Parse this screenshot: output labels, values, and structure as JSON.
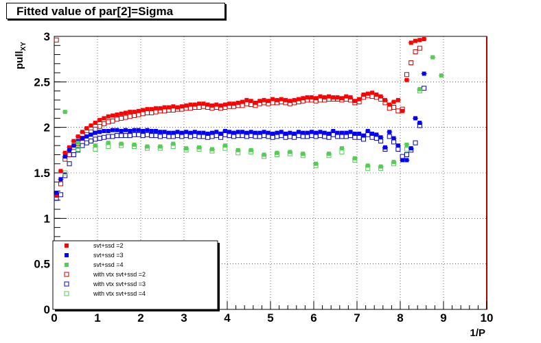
{
  "title": "Fitted value of par[2]=Sigma",
  "chart_data": {
    "type": "scatter",
    "title": "Fitted value of par[2]=Sigma",
    "xlabel": "1/P",
    "ylabel_main": "pull",
    "ylabel_sub": "XY",
    "xlim": [
      0,
      10
    ],
    "ylim": [
      0,
      3
    ],
    "x_ticks": [
      "0",
      "1",
      "2",
      "3",
      "4",
      "5",
      "6",
      "7",
      "8",
      "9",
      "10"
    ],
    "y_ticks": [
      "0",
      "0.5",
      "1",
      "1.5",
      "2",
      "2.5",
      "3"
    ],
    "grid": true,
    "legend_position": "bottom-left",
    "series": [
      {
        "name": "svt+ssd =2",
        "color": "#ff0000",
        "marker": "filled-square",
        "x": [
          0.05,
          0.15,
          0.25,
          0.35,
          0.45,
          0.55,
          0.65,
          0.75,
          0.85,
          0.95,
          1.05,
          1.15,
          1.25,
          1.35,
          1.45,
          1.55,
          1.65,
          1.75,
          1.85,
          1.95,
          2.05,
          2.15,
          2.25,
          2.35,
          2.45,
          2.55,
          2.65,
          2.75,
          2.85,
          2.95,
          3.05,
          3.15,
          3.25,
          3.35,
          3.45,
          3.55,
          3.65,
          3.75,
          3.85,
          3.95,
          4.05,
          4.15,
          4.25,
          4.35,
          4.45,
          4.55,
          4.65,
          4.75,
          4.85,
          4.95,
          5.05,
          5.15,
          5.25,
          5.35,
          5.45,
          5.55,
          5.65,
          5.75,
          5.85,
          5.95,
          6.05,
          6.15,
          6.25,
          6.35,
          6.45,
          6.55,
          6.65,
          6.75,
          6.85,
          6.95,
          7.05,
          7.15,
          7.25,
          7.35,
          7.45,
          7.55,
          7.65,
          7.75,
          7.85,
          7.95,
          8.05,
          8.15,
          8.25,
          8.35,
          8.45,
          8.55
        ],
        "y": [
          1.25,
          1.52,
          1.72,
          1.78,
          1.85,
          1.9,
          1.95,
          1.99,
          2.02,
          2.05,
          2.08,
          2.1,
          2.12,
          2.13,
          2.14,
          2.15,
          2.16,
          2.17,
          2.17,
          2.18,
          2.19,
          2.2,
          2.2,
          2.21,
          2.21,
          2.22,
          2.22,
          2.23,
          2.22,
          2.23,
          2.24,
          2.25,
          2.25,
          2.26,
          2.26,
          2.25,
          2.24,
          2.25,
          2.24,
          2.25,
          2.26,
          2.26,
          2.27,
          2.28,
          2.3,
          2.29,
          2.27,
          2.29,
          2.3,
          2.29,
          2.31,
          2.3,
          2.31,
          2.3,
          2.29,
          2.3,
          2.31,
          2.32,
          2.33,
          2.33,
          2.32,
          2.34,
          2.33,
          2.34,
          2.33,
          2.33,
          2.32,
          2.34,
          2.33,
          2.29,
          2.31,
          2.36,
          2.37,
          2.38,
          2.36,
          2.34,
          2.3,
          2.25,
          2.28,
          2.3,
          2.18,
          2.52,
          2.93,
          2.95,
          2.96,
          2.97
        ]
      },
      {
        "name": "svt+ssd =3",
        "color": "#0000ff",
        "marker": "filled-square",
        "x": [
          0.05,
          0.15,
          0.25,
          0.35,
          0.45,
          0.55,
          0.65,
          0.75,
          0.85,
          0.95,
          1.05,
          1.15,
          1.25,
          1.35,
          1.45,
          1.55,
          1.65,
          1.75,
          1.85,
          1.95,
          2.05,
          2.15,
          2.25,
          2.35,
          2.45,
          2.55,
          2.65,
          2.75,
          2.85,
          2.95,
          3.05,
          3.15,
          3.25,
          3.35,
          3.45,
          3.55,
          3.65,
          3.75,
          3.85,
          3.95,
          4.05,
          4.15,
          4.25,
          4.35,
          4.45,
          4.55,
          4.65,
          4.75,
          4.85,
          4.95,
          5.05,
          5.15,
          5.25,
          5.35,
          5.45,
          5.55,
          5.65,
          5.75,
          5.85,
          5.95,
          6.05,
          6.15,
          6.25,
          6.35,
          6.45,
          6.55,
          6.65,
          6.75,
          6.85,
          6.95,
          7.05,
          7.15,
          7.25,
          7.35,
          7.45,
          7.55,
          7.65,
          7.75,
          7.85,
          7.95,
          8.05,
          8.15,
          8.25,
          8.35,
          8.45,
          8.55
        ],
        "y": [
          1.28,
          1.43,
          1.68,
          1.75,
          1.8,
          1.85,
          1.88,
          1.9,
          1.92,
          1.94,
          1.95,
          1.96,
          1.96,
          1.97,
          1.97,
          1.96,
          1.97,
          1.96,
          1.97,
          1.97,
          1.96,
          1.97,
          1.96,
          1.96,
          1.95,
          1.95,
          1.94,
          1.94,
          1.95,
          1.94,
          1.95,
          1.94,
          1.95,
          1.94,
          1.94,
          1.93,
          1.94,
          1.95,
          1.93,
          1.96,
          1.95,
          1.94,
          1.95,
          1.95,
          1.94,
          1.95,
          1.94,
          1.94,
          1.95,
          1.94,
          1.93,
          1.94,
          1.95,
          1.93,
          1.94,
          1.93,
          1.95,
          1.94,
          1.94,
          1.95,
          1.94,
          1.95,
          1.94,
          1.93,
          1.96,
          1.94,
          1.94,
          1.94,
          1.95,
          1.93,
          1.93,
          1.91,
          1.96,
          1.93,
          1.92,
          1.89,
          1.78,
          1.95,
          1.88,
          1.8,
          1.64,
          1.64,
          1.77,
          2.1,
          2.05,
          2.59
        ]
      },
      {
        "name": "svt+ssd =4",
        "color": "#55cc55",
        "marker": "filled-square",
        "x": [
          0.25,
          0.55,
          0.95,
          1.25,
          1.55,
          1.85,
          2.15,
          2.45,
          2.75,
          3.05,
          3.35,
          3.65,
          3.95,
          4.25,
          4.55,
          4.85,
          5.15,
          5.45,
          5.75,
          6.05,
          6.35,
          6.65,
          6.95,
          7.25,
          7.55,
          7.85,
          8.15,
          8.45,
          8.75,
          8.95
        ],
        "y": [
          2.17,
          1.83,
          1.8,
          1.83,
          1.82,
          1.81,
          1.79,
          1.79,
          1.82,
          1.77,
          1.78,
          1.76,
          1.8,
          1.75,
          1.75,
          1.7,
          1.72,
          1.73,
          1.71,
          1.6,
          1.71,
          1.77,
          1.66,
          1.58,
          1.57,
          1.62,
          1.81,
          2.42,
          2.77,
          2.57
        ]
      },
      {
        "name": "with vtx svt+ssd =2",
        "color": "#cc0000",
        "marker": "open-square",
        "x": [
          0.05,
          0.15,
          0.25,
          0.35,
          0.45,
          0.55,
          0.65,
          0.75,
          0.85,
          0.95,
          1.05,
          1.15,
          1.25,
          1.35,
          1.45,
          1.55,
          1.65,
          1.75,
          1.85,
          1.95,
          2.05,
          2.15,
          2.25,
          2.35,
          2.45,
          2.55,
          2.65,
          2.75,
          2.85,
          2.95,
          3.05,
          3.15,
          3.25,
          3.35,
          3.45,
          3.55,
          3.65,
          3.75,
          3.85,
          3.95,
          4.05,
          4.15,
          4.25,
          4.35,
          4.45,
          4.55,
          4.65,
          4.75,
          4.85,
          4.95,
          5.05,
          5.15,
          5.25,
          5.35,
          5.45,
          5.55,
          5.65,
          5.75,
          5.85,
          5.95,
          6.05,
          6.15,
          6.25,
          6.35,
          6.45,
          6.55,
          6.65,
          6.75,
          6.85,
          6.95,
          7.05,
          7.15,
          7.25,
          7.35,
          7.45,
          7.55,
          7.65,
          7.75,
          7.85,
          7.95,
          8.05,
          8.15,
          8.25,
          8.35,
          8.45
        ],
        "y": [
          2.96,
          1.38,
          1.65,
          1.7,
          1.78,
          1.82,
          1.88,
          1.92,
          1.95,
          1.98,
          2.01,
          2.04,
          2.06,
          2.07,
          2.09,
          2.1,
          2.11,
          2.12,
          2.13,
          2.14,
          2.15,
          2.16,
          2.16,
          2.17,
          2.18,
          2.18,
          2.19,
          2.19,
          2.2,
          2.2,
          2.21,
          2.21,
          2.22,
          2.22,
          2.23,
          2.22,
          2.21,
          2.22,
          2.21,
          2.22,
          2.23,
          2.23,
          2.24,
          2.24,
          2.26,
          2.25,
          2.24,
          2.26,
          2.27,
          2.26,
          2.27,
          2.27,
          2.28,
          2.27,
          2.26,
          2.27,
          2.28,
          2.29,
          2.3,
          2.3,
          2.29,
          2.3,
          2.3,
          2.31,
          2.31,
          2.31,
          2.3,
          2.31,
          2.3,
          2.27,
          2.28,
          2.33,
          2.35,
          2.34,
          2.33,
          2.31,
          2.27,
          2.21,
          2.22,
          2.18,
          2.2,
          2.58,
          2.71,
          2.83,
          2.87
        ]
      },
      {
        "name": "with vtx svt+ssd =3",
        "color": "#0000cc",
        "marker": "open-square",
        "x": [
          0.05,
          0.15,
          0.25,
          0.35,
          0.45,
          0.55,
          0.65,
          0.75,
          0.85,
          0.95,
          1.05,
          1.15,
          1.25,
          1.35,
          1.45,
          1.55,
          1.65,
          1.75,
          1.85,
          1.95,
          2.05,
          2.15,
          2.25,
          2.35,
          2.45,
          2.55,
          2.65,
          2.75,
          2.85,
          2.95,
          3.05,
          3.15,
          3.25,
          3.35,
          3.45,
          3.55,
          3.65,
          3.75,
          3.85,
          3.95,
          4.05,
          4.15,
          4.25,
          4.35,
          4.45,
          4.55,
          4.65,
          4.75,
          4.85,
          4.95,
          5.05,
          5.15,
          5.25,
          5.35,
          5.45,
          5.55,
          5.65,
          5.75,
          5.85,
          5.95,
          6.05,
          6.15,
          6.25,
          6.35,
          6.45,
          6.55,
          6.65,
          6.75,
          6.85,
          6.95,
          7.05,
          7.15,
          7.25,
          7.35,
          7.45,
          7.55,
          7.65,
          7.75,
          7.85,
          7.95,
          8.05,
          8.15,
          8.25,
          8.35,
          8.45,
          8.55
        ],
        "y": [
          1.22,
          1.26,
          1.47,
          1.6,
          1.7,
          1.75,
          1.8,
          1.83,
          1.85,
          1.87,
          1.88,
          1.89,
          1.9,
          1.9,
          1.91,
          1.91,
          1.91,
          1.91,
          1.92,
          1.92,
          1.91,
          1.92,
          1.91,
          1.91,
          1.9,
          1.91,
          1.9,
          1.9,
          1.91,
          1.9,
          1.91,
          1.9,
          1.91,
          1.9,
          1.9,
          1.89,
          1.9,
          1.91,
          1.89,
          1.92,
          1.91,
          1.9,
          1.91,
          1.91,
          1.9,
          1.91,
          1.9,
          1.9,
          1.91,
          1.9,
          1.89,
          1.9,
          1.91,
          1.89,
          1.9,
          1.89,
          1.91,
          1.9,
          1.9,
          1.91,
          1.9,
          1.91,
          1.9,
          1.89,
          1.92,
          1.9,
          1.9,
          1.9,
          1.91,
          1.89,
          1.89,
          1.87,
          1.92,
          1.89,
          1.88,
          1.85,
          1.76,
          1.9,
          1.84,
          1.76,
          1.68,
          1.7,
          1.75,
          1.83,
          2.02,
          2.43
        ]
      },
      {
        "name": "with vtx svt+ssd =4",
        "color": "#55cc55",
        "marker": "open-square",
        "x": [
          0.25,
          0.55,
          0.95,
          1.25,
          1.55,
          1.85,
          2.15,
          2.45,
          2.75,
          3.05,
          3.35,
          3.65,
          3.95,
          4.25,
          4.55,
          4.85,
          5.15,
          5.45,
          5.75,
          6.05,
          6.35,
          6.65,
          6.95,
          7.25,
          7.55,
          7.85,
          8.15,
          8.45
        ],
        "y": [
          1.5,
          1.76,
          1.76,
          1.79,
          1.8,
          1.79,
          1.77,
          1.77,
          1.79,
          1.75,
          1.76,
          1.74,
          1.77,
          1.72,
          1.73,
          1.68,
          1.7,
          1.71,
          1.69,
          1.58,
          1.69,
          1.73,
          1.64,
          1.55,
          1.55,
          1.6,
          1.76,
          2.4
        ]
      }
    ]
  }
}
